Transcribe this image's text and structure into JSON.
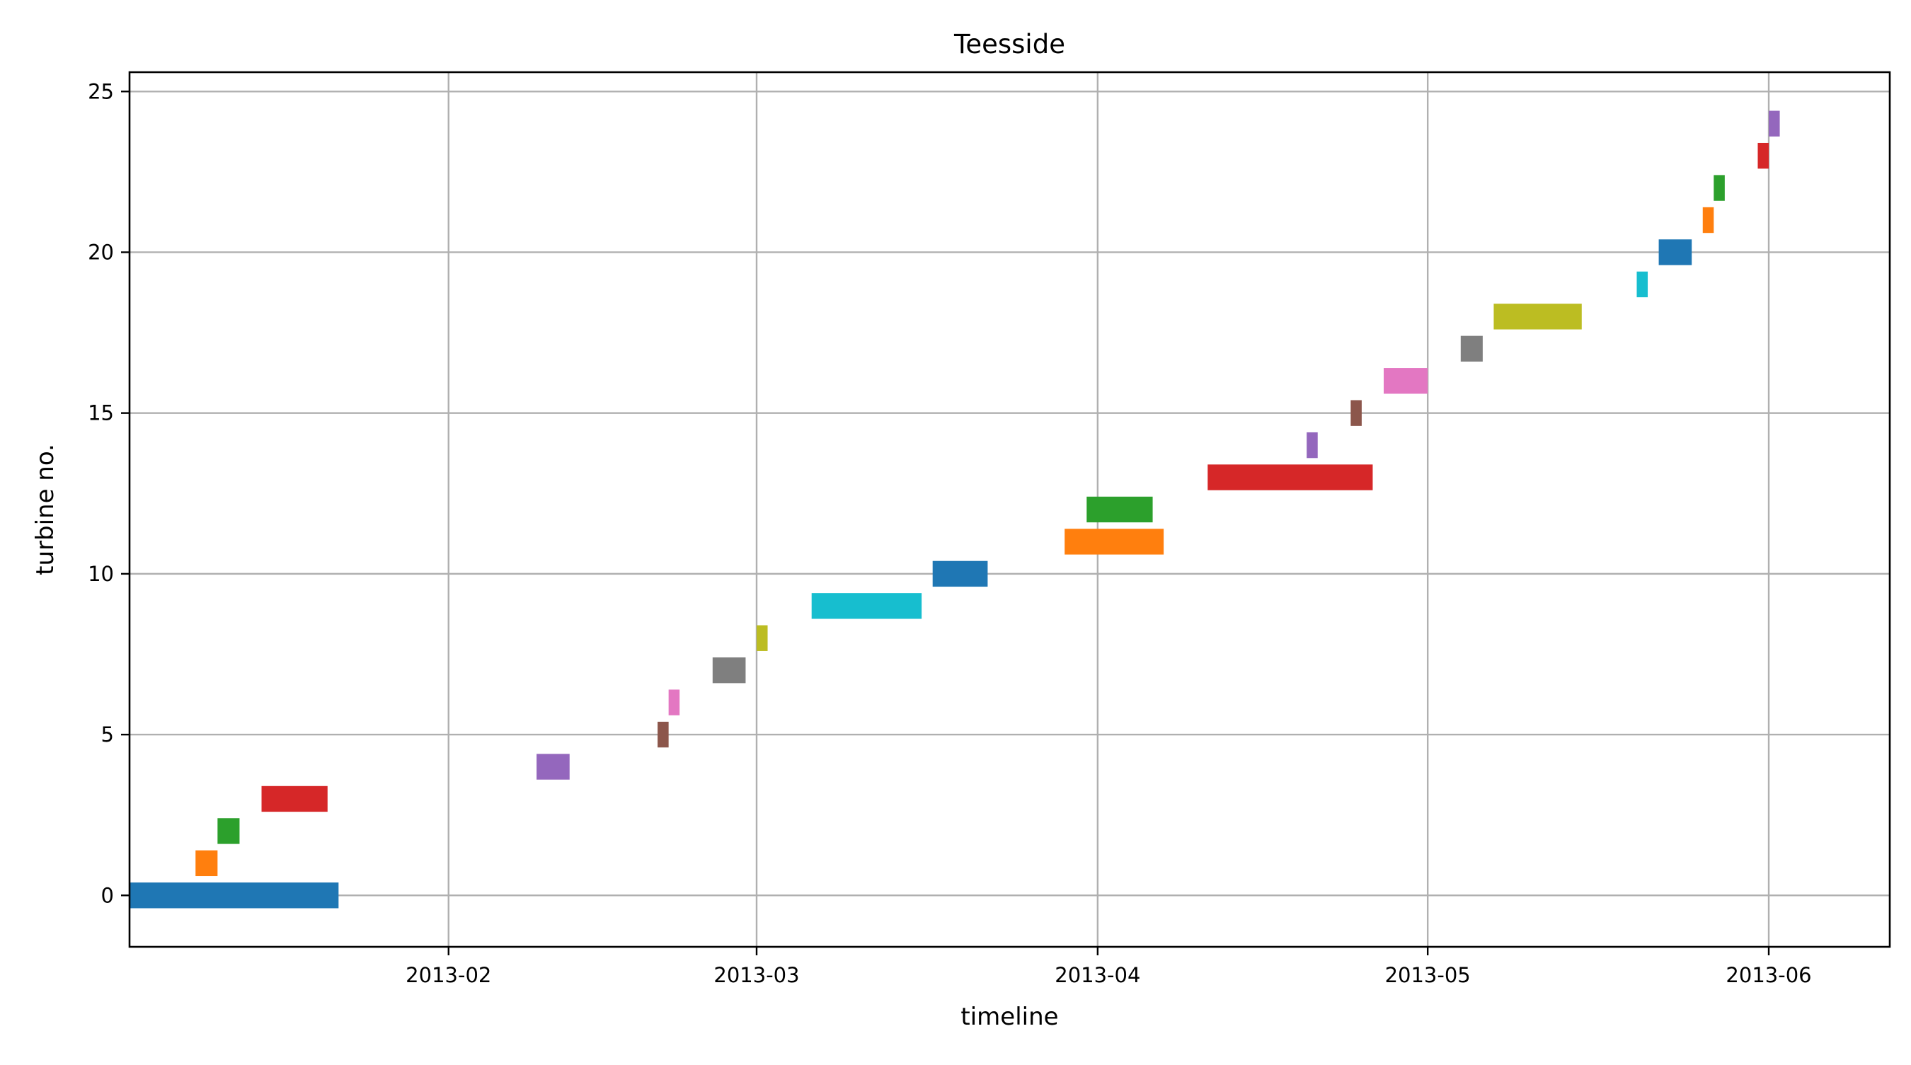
{
  "chart_data": {
    "type": "gantt",
    "title": "Teesside",
    "xlabel": "timeline",
    "ylabel": "turbine no.",
    "x_is_date": true,
    "xlim": [
      "2013-01-03",
      "2013-06-12"
    ],
    "ylim": [
      -1.6,
      25.6
    ],
    "x_ticks": [
      {
        "value": "2013-02-01",
        "label": "2013-02"
      },
      {
        "value": "2013-03-01",
        "label": "2013-03"
      },
      {
        "value": "2013-04-01",
        "label": "2013-04"
      },
      {
        "value": "2013-05-01",
        "label": "2013-05"
      },
      {
        "value": "2013-06-01",
        "label": "2013-06"
      }
    ],
    "y_ticks": [
      0,
      5,
      10,
      15,
      20,
      25
    ],
    "grid": true,
    "bar_height": 0.8,
    "colors": [
      "#1f77b4",
      "#ff7f0e",
      "#2ca02c",
      "#d62728",
      "#9467bd",
      "#8c564b",
      "#e377c2",
      "#7f7f7f",
      "#bcbd22",
      "#17becf"
    ],
    "tasks": [
      {
        "turbine": 0,
        "start": "2013-01-03",
        "end": "2013-01-22"
      },
      {
        "turbine": 1,
        "start": "2013-01-09",
        "end": "2013-01-11"
      },
      {
        "turbine": 2,
        "start": "2013-01-11",
        "end": "2013-01-13"
      },
      {
        "turbine": 3,
        "start": "2013-01-15",
        "end": "2013-01-21"
      },
      {
        "turbine": 4,
        "start": "2013-02-09",
        "end": "2013-02-12"
      },
      {
        "turbine": 5,
        "start": "2013-02-20",
        "end": "2013-02-21"
      },
      {
        "turbine": 6,
        "start": "2013-02-21",
        "end": "2013-02-22"
      },
      {
        "turbine": 7,
        "start": "2013-02-25",
        "end": "2013-02-28"
      },
      {
        "turbine": 8,
        "start": "2013-03-01",
        "end": "2013-03-02"
      },
      {
        "turbine": 9,
        "start": "2013-03-06",
        "end": "2013-03-16"
      },
      {
        "turbine": 10,
        "start": "2013-03-17",
        "end": "2013-03-22"
      },
      {
        "turbine": 11,
        "start": "2013-03-29",
        "end": "2013-04-07"
      },
      {
        "turbine": 12,
        "start": "2013-03-31",
        "end": "2013-04-06"
      },
      {
        "turbine": 13,
        "start": "2013-04-11",
        "end": "2013-04-26"
      },
      {
        "turbine": 14,
        "start": "2013-04-20",
        "end": "2013-04-21"
      },
      {
        "turbine": 15,
        "start": "2013-04-24",
        "end": "2013-04-25"
      },
      {
        "turbine": 16,
        "start": "2013-04-27",
        "end": "2013-05-01"
      },
      {
        "turbine": 17,
        "start": "2013-05-04",
        "end": "2013-05-06"
      },
      {
        "turbine": 18,
        "start": "2013-05-07",
        "end": "2013-05-15"
      },
      {
        "turbine": 19,
        "start": "2013-05-20",
        "end": "2013-05-21"
      },
      {
        "turbine": 20,
        "start": "2013-05-22",
        "end": "2013-05-25"
      },
      {
        "turbine": 21,
        "start": "2013-05-26",
        "end": "2013-05-27"
      },
      {
        "turbine": 22,
        "start": "2013-05-27",
        "end": "2013-05-28"
      },
      {
        "turbine": 23,
        "start": "2013-05-31",
        "end": "2013-06-01"
      },
      {
        "turbine": 24,
        "start": "2013-06-01",
        "end": "2013-06-02"
      }
    ]
  }
}
